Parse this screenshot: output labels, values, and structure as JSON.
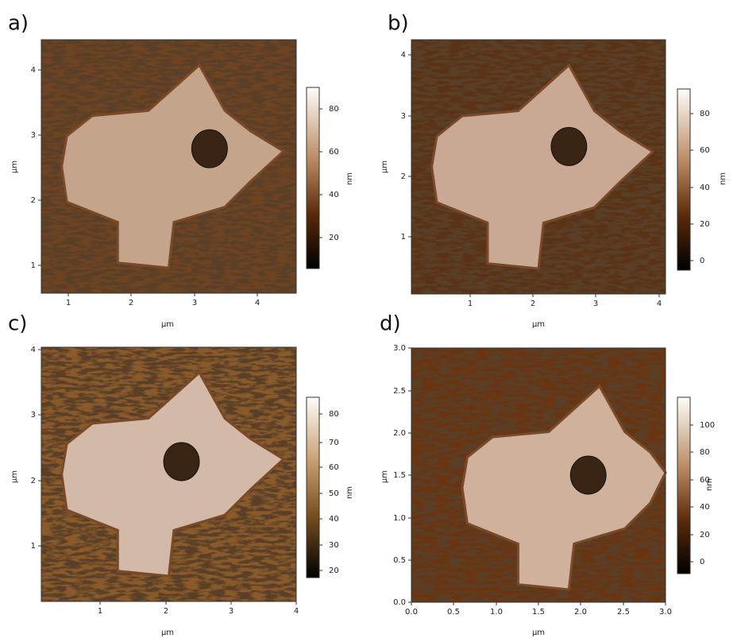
{
  "panels": [
    {
      "label": "a)",
      "x_label": "µm",
      "y_label": "µm",
      "x_ticks": [
        "1",
        "2",
        "3",
        "4"
      ],
      "y_ticks": [
        "1",
        "2",
        "3",
        "4"
      ],
      "colorbar_ticks": [
        "80",
        "60",
        "40",
        "20"
      ],
      "colorbar_label": "nm"
    },
    {
      "label": "b)",
      "x_label": "µm",
      "y_label": "µm",
      "x_ticks": [
        "1",
        "2",
        "3",
        "4"
      ],
      "y_ticks": [
        "1",
        "2",
        "3",
        "4"
      ],
      "colorbar_ticks": [
        "80",
        "60",
        "40",
        "20",
        "0"
      ],
      "colorbar_label": "nm"
    },
    {
      "label": "c)",
      "x_label": "µm",
      "y_label": "µm",
      "x_ticks": [
        "1",
        "2",
        "3",
        "4"
      ],
      "y_ticks": [
        "1",
        "2",
        "3",
        "4"
      ],
      "colorbar_ticks": [
        "80",
        "70",
        "60",
        "50",
        "40",
        "30",
        "20"
      ],
      "colorbar_label": "nm"
    },
    {
      "label": "d)",
      "x_label": "µm",
      "y_label": "µm",
      "x_ticks": [
        "0.0",
        "0.5",
        "1.0",
        "1.5",
        "2.0",
        "2.5",
        "3.0"
      ],
      "y_ticks": [
        "0.0",
        "0.5",
        "1.0",
        "1.5",
        "2.0",
        "2.5",
        "3.0"
      ],
      "colorbar_ticks": [
        "100",
        "80",
        "60",
        "40",
        "20",
        "0"
      ],
      "colorbar_label": "nm"
    }
  ]
}
